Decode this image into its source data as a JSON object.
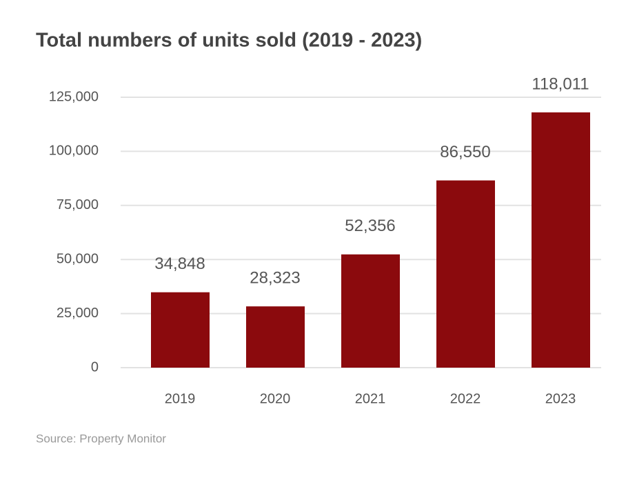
{
  "chart_data": {
    "type": "bar",
    "title": "Total numbers of units sold (2019 - 2023)",
    "categories": [
      "2019",
      "2020",
      "2021",
      "2022",
      "2023"
    ],
    "values": [
      34848,
      28323,
      52356,
      86550,
      118011
    ],
    "value_labels": [
      "34,848",
      "28,323",
      "52,356",
      "86,550",
      "118,011"
    ],
    "color": "#8b0a0d",
    "ylim": [
      0,
      125000
    ],
    "yticks": [
      0,
      {
        "value": 25000,
        "label": "25,000"
      },
      {
        "value": 50000,
        "label": "50,000"
      },
      {
        "value": 75000,
        "label": "75,000"
      },
      {
        "value": 100000,
        "label": "100,000"
      },
      {
        "value": 125000,
        "label": "125,000"
      }
    ],
    "grid": true,
    "source": "Source: Property Monitor"
  }
}
